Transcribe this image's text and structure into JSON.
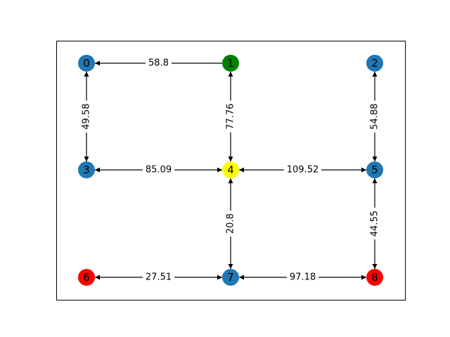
{
  "graph": {
    "nodes": [
      {
        "id": "0",
        "label": "0",
        "color": "#1f77b4"
      },
      {
        "id": "1",
        "label": "1",
        "color": "#008000"
      },
      {
        "id": "2",
        "label": "2",
        "color": "#1f77b4"
      },
      {
        "id": "3",
        "label": "3",
        "color": "#1f77b4"
      },
      {
        "id": "4",
        "label": "4",
        "color": "#ffff00"
      },
      {
        "id": "5",
        "label": "5",
        "color": "#1f77b4"
      },
      {
        "id": "6",
        "label": "6",
        "color": "#ff0000"
      },
      {
        "id": "7",
        "label": "7",
        "color": "#1f77b4"
      },
      {
        "id": "8",
        "label": "8",
        "color": "#ff0000"
      }
    ],
    "edges": [
      {
        "from": "1",
        "to": "0",
        "weight": "58.8",
        "bidirectional": false
      },
      {
        "from": "0",
        "to": "3",
        "weight": "49.58",
        "bidirectional": true
      },
      {
        "from": "1",
        "to": "4",
        "weight": "77.76",
        "bidirectional": true
      },
      {
        "from": "2",
        "to": "5",
        "weight": "54.88",
        "bidirectional": true
      },
      {
        "from": "3",
        "to": "4",
        "weight": "85.09",
        "bidirectional": true
      },
      {
        "from": "4",
        "to": "5",
        "weight": "109.52",
        "bidirectional": true
      },
      {
        "from": "4",
        "to": "7",
        "weight": "20.8",
        "bidirectional": true
      },
      {
        "from": "5",
        "to": "8",
        "weight": "44.55",
        "bidirectional": true
      },
      {
        "from": "6",
        "to": "7",
        "weight": "27.51",
        "bidirectional": true
      },
      {
        "from": "7",
        "to": "8",
        "weight": "97.18",
        "bidirectional": true
      }
    ]
  }
}
